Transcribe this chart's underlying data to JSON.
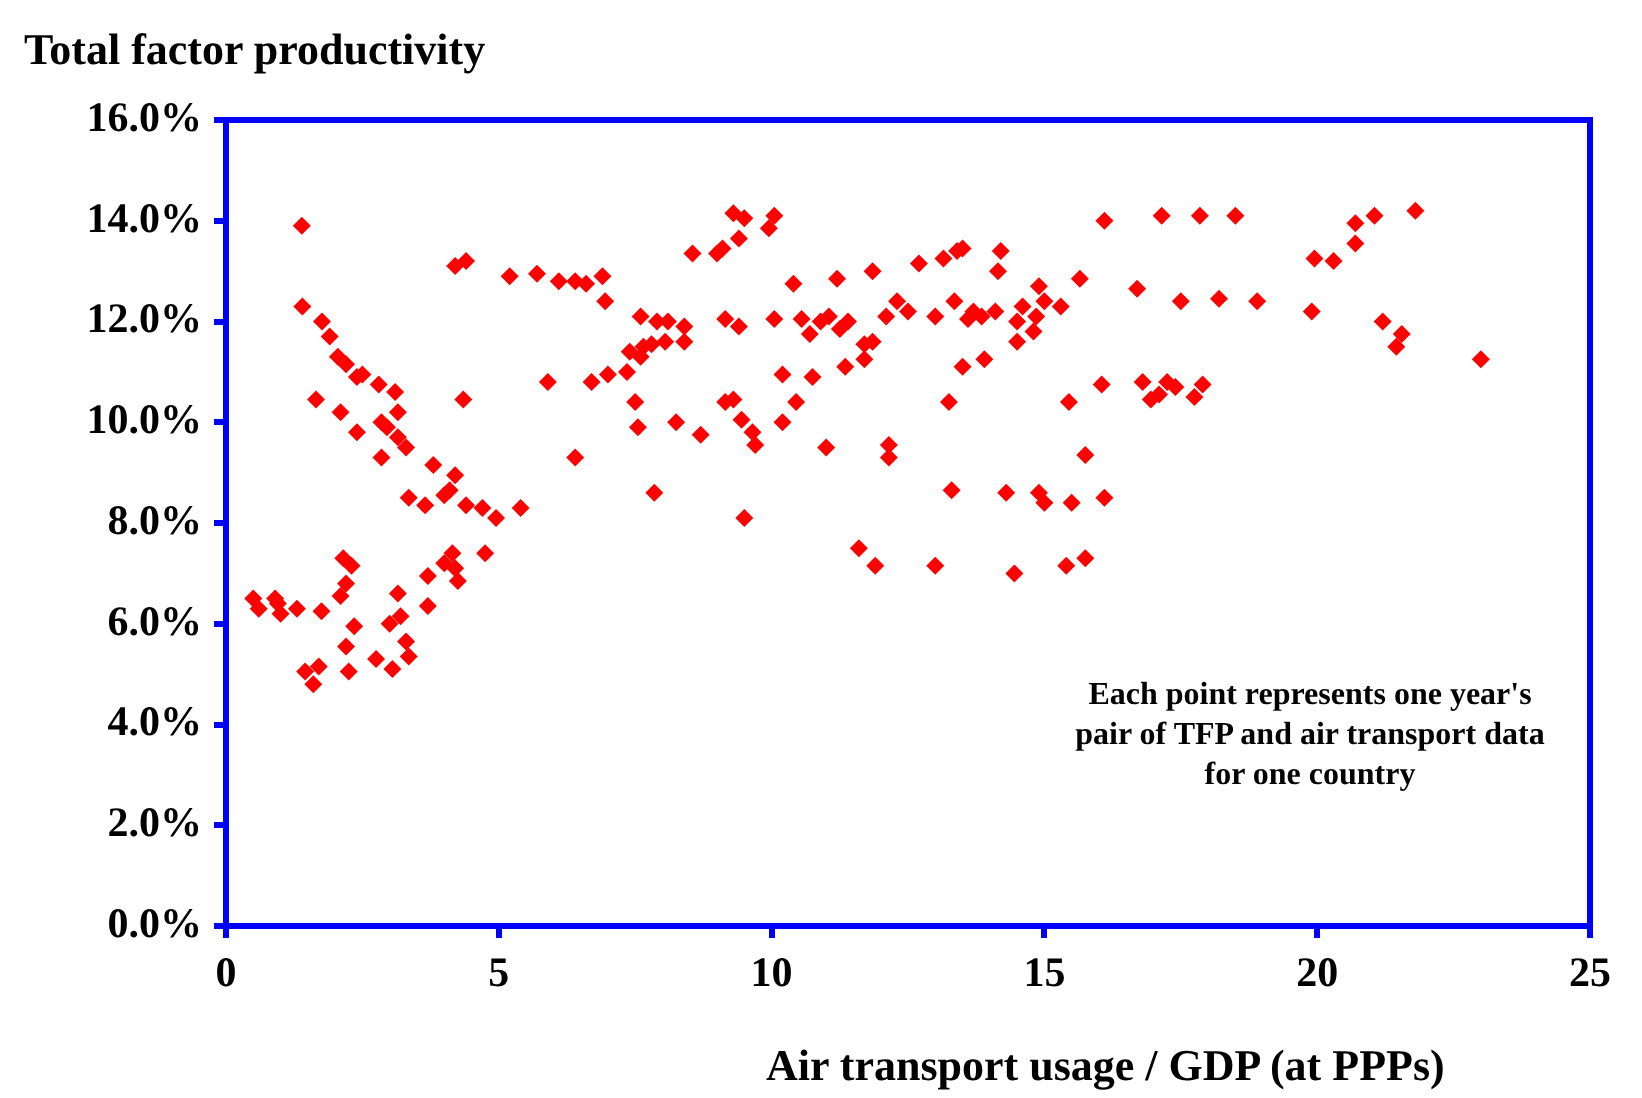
{
  "chart_data": {
    "type": "scatter",
    "ylabel": "Total factor productivity",
    "xlabel": "Air transport usage / GDP (at PPPs)",
    "annotations": [
      "Each point represents one year's pair of TFP and air transport data for one country"
    ],
    "xlim": [
      0,
      25
    ],
    "xticks": [
      0,
      5,
      10,
      15,
      20,
      25
    ],
    "ylim": [
      0,
      16
    ],
    "yticks": [
      {
        "value": 0,
        "label": "0.0%"
      },
      {
        "value": 2,
        "label": "2.0%"
      },
      {
        "value": 4,
        "label": "4.0%"
      },
      {
        "value": 6,
        "label": "6.0%"
      },
      {
        "value": 8,
        "label": "8.0%"
      },
      {
        "value": 10,
        "label": "10.0%"
      },
      {
        "value": 12,
        "label": "12.0%"
      },
      {
        "value": 14,
        "label": "14.0%"
      },
      {
        "value": 16,
        "label": "16.0%"
      }
    ],
    "grid": false,
    "legend": false,
    "marker": "diamond",
    "series": [
      {
        "color": "#ff0000",
        "x": [
          1.39,
          4.2,
          4.4,
          1.4,
          1.76,
          1.9,
          2.05,
          2.2,
          2.4,
          2.5,
          2.8,
          3.1,
          1.65,
          2.1,
          3.15,
          2.4,
          2.85,
          2.95,
          3.15,
          3.3,
          2.85,
          3.8,
          4.2,
          4.1,
          4.0,
          3.35,
          3.65,
          4.4,
          4.7,
          4.95,
          5.4,
          4.35,
          5.9,
          6.4,
          6.7,
          5.2,
          5.7,
          6.1,
          6.4,
          6.6,
          0.5,
          0.6,
          0.9,
          1.0,
          0.95,
          1.3,
          1.75,
          2.15,
          2.3,
          2.2,
          2.1,
          2.35,
          2.2,
          2.25,
          1.45,
          1.6,
          1.7,
          2.75,
          3.05,
          3.35,
          3.3,
          3.0,
          3.2,
          3.15,
          3.7,
          3.7,
          4.0,
          4.15,
          4.25,
          4.2,
          4.75,
          9.3,
          9.5,
          10.05,
          9.95,
          9.4,
          9.1,
          9.0,
          8.55,
          6.9,
          6.95,
          10.4,
          11.2,
          11.85,
          12.7,
          13.15,
          13.4,
          12.3,
          12.5,
          12.1,
          13.0,
          13.35,
          7.6,
          7.9,
          8.1,
          8.4,
          7.4,
          7.65,
          7.8,
          8.05,
          8.4,
          7.6,
          7.35,
          7.0,
          9.15,
          9.4,
          10.05,
          10.55,
          10.7,
          10.9,
          11.05,
          11.25,
          11.4,
          11.7,
          11.85,
          11.7,
          11.35,
          10.2,
          10.75,
          7.5,
          7.55,
          8.25,
          8.7,
          9.15,
          9.3,
          9.45,
          9.65,
          9.7,
          10.2,
          10.45,
          7.85,
          9.5,
          11.0,
          12.15,
          12.15,
          13.25,
          13.3,
          11.6,
          11.9,
          13.0,
          16.1,
          17.15,
          17.85,
          18.5,
          13.5,
          14.2,
          14.15,
          19.95,
          20.3,
          13.7,
          13.85,
          14.1,
          13.6,
          14.6,
          14.9,
          15.0,
          15.3,
          15.65,
          14.5,
          14.85,
          14.8,
          14.5,
          16.7,
          17.5,
          18.2,
          18.9,
          19.9,
          13.5,
          13.9,
          15.45,
          16.05,
          16.8,
          16.95,
          17.1,
          17.25,
          17.4,
          17.75,
          17.9,
          15.75,
          14.3,
          14.9,
          15.0,
          15.5,
          16.1,
          14.45,
          15.4,
          15.75,
          20.7,
          20.7,
          21.05,
          21.8,
          21.2,
          21.55,
          21.45,
          23.0
        ],
        "values": [
          13.9,
          13.1,
          13.2,
          12.3,
          12.0,
          11.7,
          11.3,
          11.15,
          10.9,
          10.95,
          10.75,
          10.6,
          10.45,
          10.2,
          10.2,
          9.8,
          10.0,
          9.9,
          9.7,
          9.5,
          9.3,
          9.15,
          8.95,
          8.65,
          8.55,
          8.5,
          8.35,
          8.35,
          8.3,
          8.1,
          8.3,
          10.45,
          10.8,
          9.3,
          10.8,
          12.9,
          12.95,
          12.8,
          12.8,
          12.75,
          6.5,
          6.3,
          6.5,
          6.2,
          6.4,
          6.3,
          6.25,
          7.3,
          7.15,
          6.8,
          6.55,
          5.95,
          5.55,
          5.05,
          5.05,
          4.8,
          5.15,
          5.3,
          5.1,
          5.35,
          5.65,
          6.0,
          6.15,
          6.6,
          6.35,
          6.95,
          7.2,
          7.4,
          6.85,
          7.1,
          7.4,
          14.15,
          14.05,
          14.1,
          13.85,
          13.65,
          13.45,
          13.35,
          13.35,
          12.9,
          12.4,
          12.75,
          12.85,
          13.0,
          13.15,
          13.25,
          13.4,
          12.4,
          12.2,
          12.1,
          12.1,
          12.4,
          12.1,
          12.0,
          12.0,
          11.9,
          11.4,
          11.5,
          11.55,
          11.6,
          11.6,
          11.3,
          11.0,
          10.95,
          12.05,
          11.9,
          12.05,
          12.05,
          11.75,
          12.0,
          12.1,
          11.85,
          12.0,
          11.55,
          11.6,
          11.25,
          11.1,
          10.95,
          10.9,
          10.4,
          9.9,
          10.0,
          9.75,
          10.4,
          10.45,
          10.05,
          9.8,
          9.55,
          10.0,
          10.4,
          8.6,
          8.1,
          9.5,
          9.55,
          9.3,
          10.4,
          8.65,
          7.5,
          7.15,
          7.15,
          14.0,
          14.1,
          14.1,
          14.1,
          13.45,
          13.4,
          13.0,
          13.25,
          13.2,
          12.2,
          12.1,
          12.2,
          12.05,
          12.3,
          12.7,
          12.4,
          12.3,
          12.85,
          12.0,
          12.1,
          11.8,
          11.6,
          12.65,
          12.4,
          12.45,
          12.4,
          12.2,
          11.1,
          11.25,
          10.4,
          10.75,
          10.8,
          10.45,
          10.55,
          10.8,
          10.7,
          10.5,
          10.75,
          9.35,
          8.6,
          8.6,
          8.4,
          8.4,
          8.5,
          7.0,
          7.15,
          7.3,
          13.55,
          13.95,
          14.1,
          14.2,
          12.0,
          11.75,
          11.5,
          11.25
        ]
      }
    ]
  }
}
